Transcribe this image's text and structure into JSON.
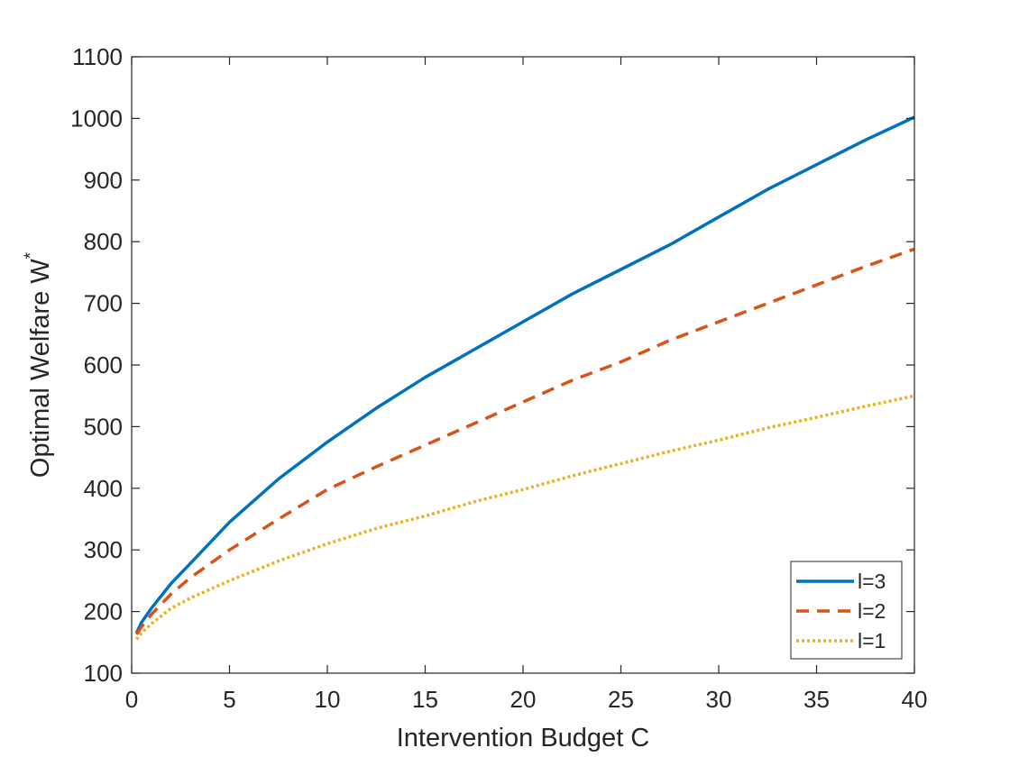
{
  "chart_data": {
    "type": "line",
    "title": "",
    "xlabel": "Intervention Budget C",
    "ylabel": "Optimal Welfare W",
    "ylabel_superscript": "*",
    "xlim": [
      0,
      40
    ],
    "ylim": [
      100,
      1100
    ],
    "xticks": [
      0,
      5,
      10,
      15,
      20,
      25,
      30,
      35,
      40
    ],
    "yticks": [
      100,
      200,
      300,
      400,
      500,
      600,
      700,
      800,
      900,
      1000,
      1100
    ],
    "x": [
      0.25,
      0.5,
      1,
      2,
      3,
      5,
      7.5,
      10,
      12.5,
      15,
      17.5,
      20,
      22.5,
      25,
      27.5,
      30,
      32.5,
      35,
      37.5,
      40
    ],
    "series": [
      {
        "name": "l=3",
        "color": "#0072BD",
        "style": "solid",
        "values": [
          165,
          182,
          205,
          245,
          278,
          345,
          415,
          475,
          530,
          580,
          625,
          670,
          715,
          755,
          795,
          840,
          885,
          925,
          965,
          1002
        ]
      },
      {
        "name": "l=2",
        "color": "#D95319",
        "style": "dashed",
        "values": [
          163,
          175,
          195,
          228,
          255,
          300,
          350,
          398,
          435,
          470,
          505,
          540,
          575,
          605,
          640,
          670,
          700,
          730,
          760,
          788
        ]
      },
      {
        "name": "l=1",
        "color": "#EDB120",
        "style": "dotted",
        "values": [
          155,
          165,
          180,
          205,
          222,
          250,
          282,
          310,
          335,
          355,
          378,
          398,
          420,
          440,
          460,
          478,
          498,
          515,
          533,
          550
        ]
      }
    ],
    "legend_position": "bottom-right"
  }
}
